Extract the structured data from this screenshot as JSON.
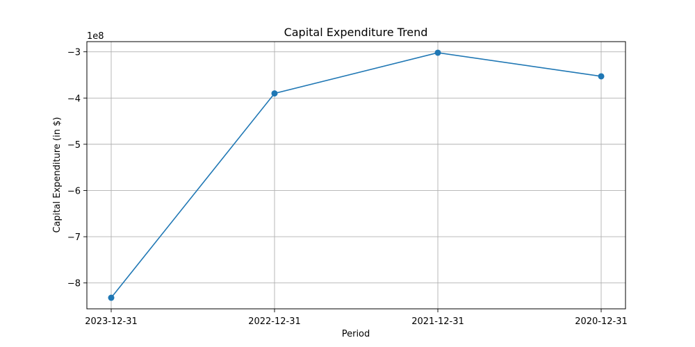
{
  "chart_data": {
    "type": "line",
    "title": "Capital Expenditure Trend",
    "xlabel": "Period",
    "ylabel": "Capital Expenditure (in $)",
    "y_offset_text": "1e8",
    "categories": [
      "2023-12-31",
      "2022-12-31",
      "2021-12-31",
      "2020-12-31"
    ],
    "series": [
      {
        "values": [
          -832000000,
          -390000000,
          -302000000,
          -353000000
        ]
      }
    ],
    "y_ticks": [
      -8,
      -7,
      -6,
      -5,
      -4,
      -3
    ],
    "y_tick_labels": [
      "−8",
      "−7",
      "−6",
      "−5",
      "−4",
      "−3"
    ],
    "y_scale": 100000000,
    "ylim": [
      -856000000,
      -278000000
    ],
    "grid": true,
    "colors": {
      "line": "#1f77b4",
      "grid": "#b0b0b0",
      "axis": "#000000"
    }
  }
}
